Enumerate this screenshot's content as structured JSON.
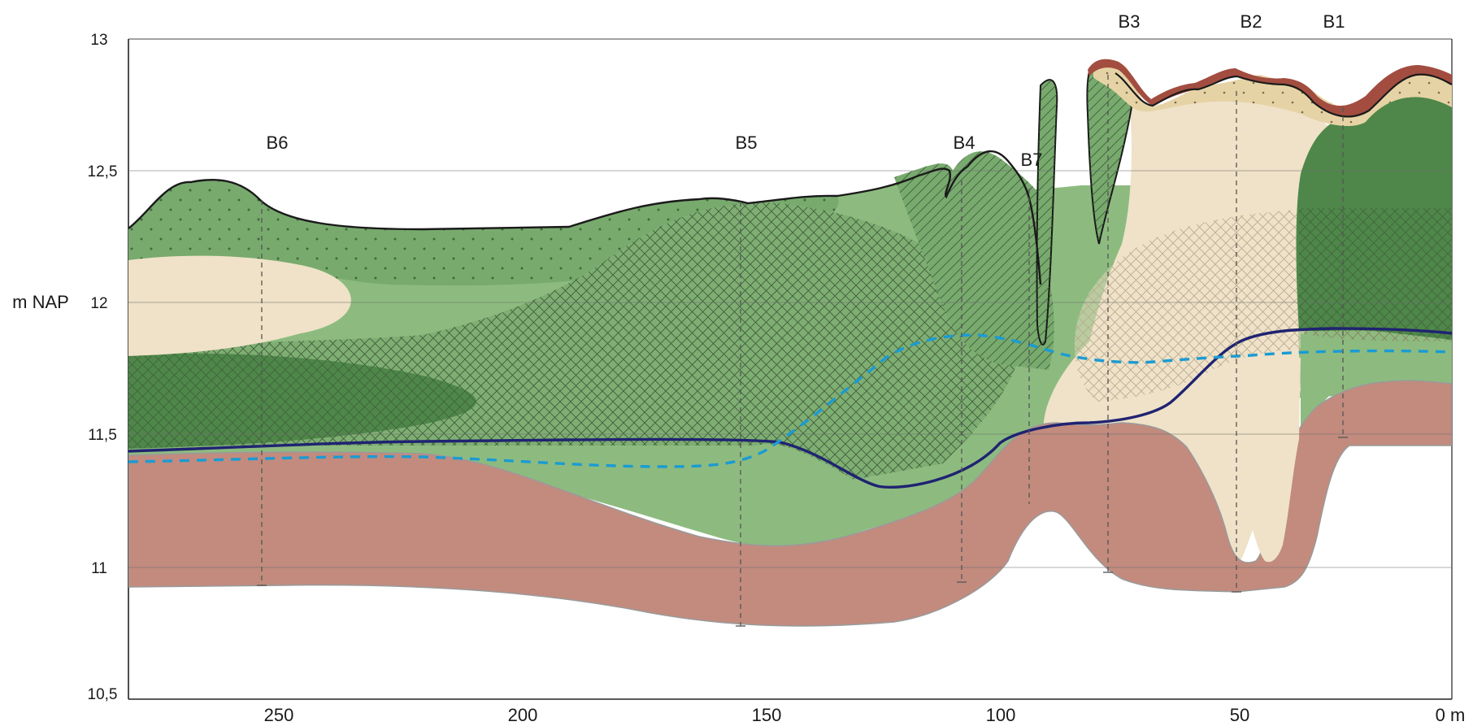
{
  "diagram": {
    "y_axis": {
      "label": "m NAP",
      "ticks": [
        "13",
        "12,5",
        "12",
        "11,5",
        "11",
        "10,5"
      ]
    },
    "x_axis": {
      "ticks": [
        "250",
        "200",
        "150",
        "100",
        "50",
        "0 m"
      ]
    },
    "boreholes": [
      {
        "id": "B1",
        "distance_m": 26
      },
      {
        "id": "B2",
        "distance_m": 49
      },
      {
        "id": "B3",
        "distance_m": 73
      },
      {
        "id": "B4",
        "distance_m": 108
      },
      {
        "id": "B5",
        "distance_m": 154
      },
      {
        "id": "B6",
        "distance_m": 253
      },
      {
        "id": "B7",
        "distance_m": 94
      }
    ],
    "colors": {
      "green_light": "#8dbb7f",
      "green_medium": "#70a568",
      "green_dark": "#4e8749",
      "sand": "#efe2c8",
      "sand_dark": "#e6d3a5",
      "clay_red": "#c28b7e",
      "topsoil_red": "#a24d40",
      "line_navy": "#1f2371",
      "line_blue_dashed": "#1b9bd3"
    }
  }
}
